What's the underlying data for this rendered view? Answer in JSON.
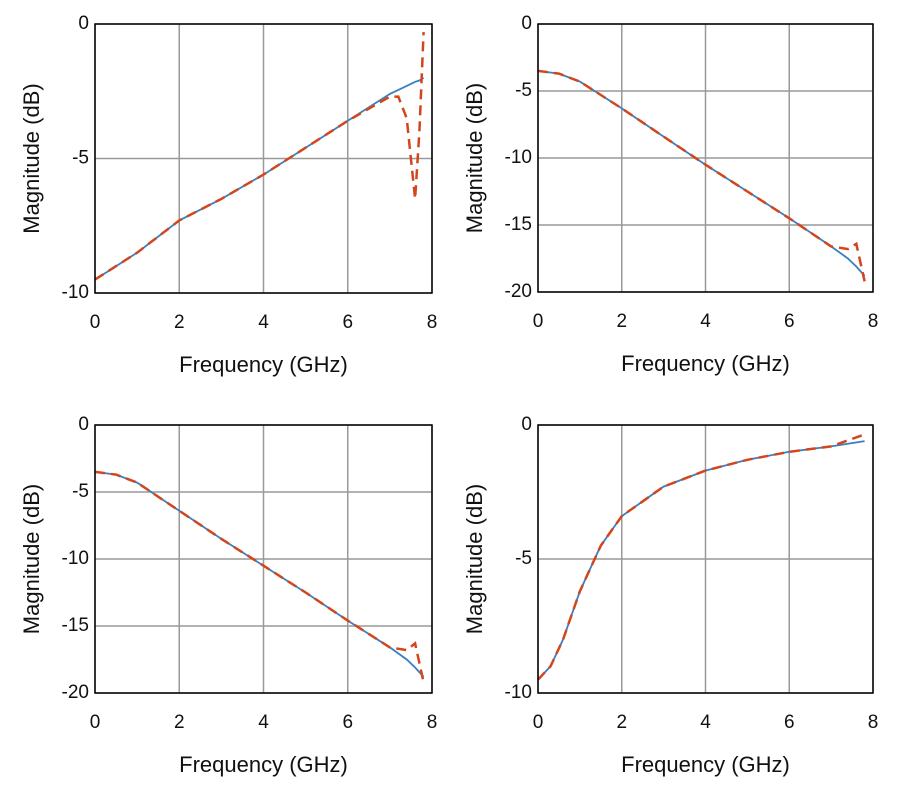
{
  "chart_data": [
    {
      "type": "line",
      "xlabel": "Frequency (GHz)",
      "ylabel": "Magnitude (dB)",
      "x": [
        0,
        1,
        2,
        3,
        4,
        5,
        6,
        7,
        7.2,
        7.4,
        7.6,
        7.7,
        7.8
      ],
      "series": [
        {
          "color": "#3a7fc1",
          "style": "solid",
          "values": [
            -9.5,
            -8.5,
            -7.3,
            -6.5,
            -5.6,
            -4.6,
            -3.6,
            -2.6,
            -2.45,
            -2.3,
            -2.15,
            -2.1,
            -2.0
          ]
        },
        {
          "color": "#d2461e",
          "style": "dashed",
          "values": [
            -9.5,
            -8.5,
            -7.3,
            -6.5,
            -5.6,
            -4.6,
            -3.6,
            -2.7,
            -2.7,
            -3.5,
            -6.5,
            -4.0,
            -0.3
          ]
        }
      ],
      "xlim": [
        0,
        8
      ],
      "xticks": [
        0,
        2,
        4,
        6,
        8
      ],
      "ylim": [
        -10,
        0
      ],
      "yticks": [
        -10,
        -5,
        0
      ],
      "grid": true
    },
    {
      "type": "line",
      "xlabel": "Frequency (GHz)",
      "ylabel": "Magnitude (dB)",
      "x": [
        0,
        0.5,
        1,
        2,
        3,
        4,
        5,
        6,
        7,
        7.4,
        7.6,
        7.8
      ],
      "series": [
        {
          "color": "#3a7fc1",
          "style": "solid",
          "values": [
            -3.5,
            -3.7,
            -4.3,
            -6.3,
            -8.4,
            -10.5,
            -12.5,
            -14.5,
            -16.6,
            -17.5,
            -18.1,
            -18.8
          ]
        },
        {
          "color": "#d2461e",
          "style": "dashed",
          "values": [
            -3.5,
            -3.7,
            -4.3,
            -6.3,
            -8.4,
            -10.5,
            -12.5,
            -14.5,
            -16.6,
            -16.8,
            -16.4,
            -19.2
          ]
        }
      ],
      "xlim": [
        0,
        8
      ],
      "xticks": [
        0,
        2,
        4,
        6,
        8
      ],
      "ylim": [
        -20,
        0
      ],
      "yticks": [
        -20,
        -15,
        -10,
        -5,
        0
      ],
      "grid": true
    },
    {
      "type": "line",
      "xlabel": "Frequency (GHz)",
      "ylabel": "Magnitude (dB)",
      "x": [
        0,
        0.5,
        1,
        2,
        3,
        4,
        5,
        6,
        7,
        7.4,
        7.6,
        7.8
      ],
      "series": [
        {
          "color": "#3a7fc1",
          "style": "solid",
          "values": [
            -3.5,
            -3.7,
            -4.3,
            -6.4,
            -8.5,
            -10.5,
            -12.5,
            -14.6,
            -16.6,
            -17.5,
            -18.1,
            -18.8
          ]
        },
        {
          "color": "#d2461e",
          "style": "dashed",
          "values": [
            -3.5,
            -3.7,
            -4.3,
            -6.4,
            -8.5,
            -10.5,
            -12.5,
            -14.6,
            -16.6,
            -16.8,
            -16.3,
            -19.2
          ]
        }
      ],
      "xlim": [
        0,
        8
      ],
      "xticks": [
        0,
        2,
        4,
        6,
        8
      ],
      "ylim": [
        -20,
        0
      ],
      "yticks": [
        -20,
        -15,
        -10,
        -5,
        0
      ],
      "grid": true
    },
    {
      "type": "line",
      "xlabel": "Frequency (GHz)",
      "ylabel": "Magnitude (dB)",
      "x": [
        0,
        0.3,
        0.6,
        1,
        1.5,
        2,
        3,
        4,
        5,
        6,
        7,
        7.8
      ],
      "series": [
        {
          "color": "#3a7fc1",
          "style": "solid",
          "values": [
            -9.5,
            -9.0,
            -8.0,
            -6.2,
            -4.5,
            -3.4,
            -2.3,
            -1.7,
            -1.3,
            -1.0,
            -0.8,
            -0.6
          ]
        },
        {
          "color": "#d2461e",
          "style": "dashed",
          "values": [
            -9.5,
            -9.0,
            -8.0,
            -6.2,
            -4.5,
            -3.4,
            -2.3,
            -1.7,
            -1.3,
            -1.0,
            -0.8,
            -0.35
          ]
        }
      ],
      "xlim": [
        0,
        8
      ],
      "xticks": [
        0,
        2,
        4,
        6,
        8
      ],
      "ylim": [
        -10,
        0
      ],
      "yticks": [
        -10,
        -5,
        0
      ],
      "grid": true
    }
  ]
}
